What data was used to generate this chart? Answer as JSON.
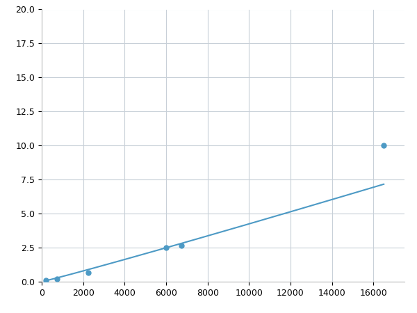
{
  "x_data": [
    188,
    750,
    2250,
    6000,
    6750,
    16500
  ],
  "y_data": [
    0.1,
    0.2,
    0.65,
    2.5,
    2.65,
    10.0
  ],
  "line_color": "#4d9ac5",
  "marker_color": "#4d9ac5",
  "marker_size": 5,
  "xlim": [
    0,
    17500
  ],
  "ylim": [
    0,
    20.0
  ],
  "xticks": [
    0,
    2000,
    4000,
    6000,
    8000,
    10000,
    12000,
    14000,
    16000
  ],
  "yticks": [
    0.0,
    2.5,
    5.0,
    7.5,
    10.0,
    12.5,
    15.0,
    17.5,
    20.0
  ],
  "grid_color": "#c8d0d8",
  "background_color": "#ffffff",
  "figsize": [
    6.0,
    4.5
  ],
  "dpi": 100
}
